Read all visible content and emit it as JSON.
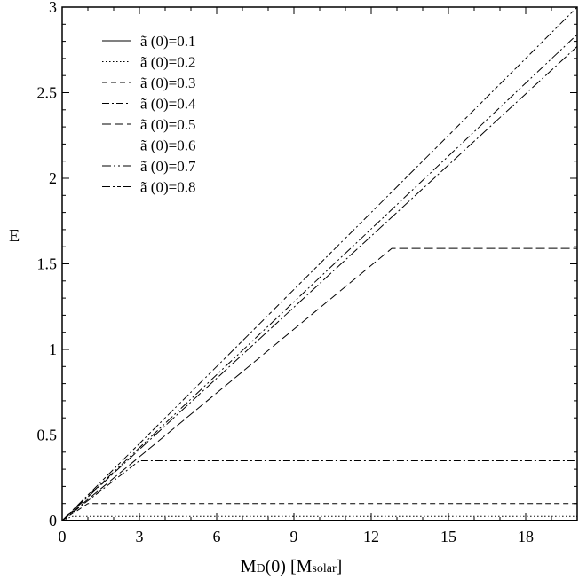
{
  "chart_data": {
    "type": "line",
    "xlabel": {
      "main": "M",
      "sub": "D",
      "mid": "(0) [M",
      "sub2": "solar",
      "end": "]"
    },
    "ylabel": "E",
    "xlim": [
      0,
      20
    ],
    "ylim": [
      0,
      3
    ],
    "xticks": [
      0,
      3,
      6,
      9,
      12,
      15,
      18
    ],
    "yticks": [
      0,
      0.5,
      1,
      1.5,
      2,
      2.5,
      3
    ],
    "xtick_labels": [
      "0",
      "3",
      "6",
      "9",
      "12",
      "15",
      "18"
    ],
    "ytick_labels": [
      "0",
      "0.5",
      "1",
      "1.5",
      "2",
      "2.5",
      "3"
    ],
    "legend_position": "top-left",
    "series": [
      {
        "name": "ã (0)=0.1",
        "dash": "solid",
        "x": [
          0,
          0.05,
          20
        ],
        "y": [
          0,
          0.0025,
          0.0025
        ]
      },
      {
        "name": "ã (0)=0.2",
        "dash": "dotted",
        "x": [
          0,
          0.4,
          20
        ],
        "y": [
          0,
          0.025,
          0.025
        ]
      },
      {
        "name": "ã (0)=0.3",
        "dash": "dashed",
        "x": [
          0,
          1.0,
          20
        ],
        "y": [
          0,
          0.1,
          0.1
        ]
      },
      {
        "name": "ã (0)=0.4",
        "dash": "dashdot",
        "x": [
          0,
          3.0,
          20
        ],
        "y": [
          0,
          0.35,
          0.35
        ]
      },
      {
        "name": "ã (0)=0.5",
        "dash": "longdash",
        "x": [
          0,
          12.8,
          20
        ],
        "y": [
          0,
          1.59,
          1.59
        ]
      },
      {
        "name": "ã (0)=0.6",
        "dash": "dashdot2",
        "x": [
          0,
          20
        ],
        "y": [
          0,
          2.77
        ]
      },
      {
        "name": "ã (0)=0.7",
        "dash": "dashdotdot",
        "x": [
          0,
          20
        ],
        "y": [
          0,
          2.84
        ]
      },
      {
        "name": "ã (0)=0.8",
        "dash": "dashdotdash",
        "x": [
          0,
          20
        ],
        "y": [
          0,
          3.0
        ]
      }
    ]
  }
}
